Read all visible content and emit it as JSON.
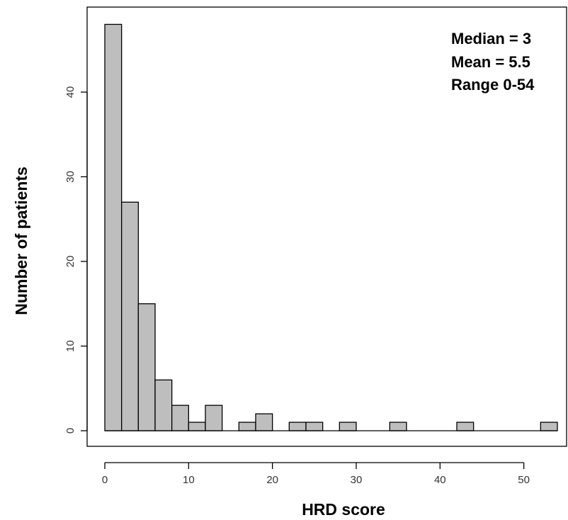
{
  "chart_data": {
    "type": "bar",
    "subtype": "histogram",
    "bin_width": 2,
    "x": [
      1,
      3,
      5,
      7,
      9,
      11,
      13,
      15,
      17,
      19,
      21,
      23,
      25,
      27,
      29,
      31,
      33,
      35,
      37,
      39,
      41,
      43,
      45,
      47,
      49,
      51,
      53
    ],
    "values": [
      48,
      27,
      15,
      6,
      3,
      1,
      3,
      0,
      1,
      2,
      0,
      1,
      1,
      0,
      1,
      0,
      0,
      1,
      0,
      0,
      0,
      1,
      0,
      0,
      0,
      0,
      1
    ],
    "xlabel": "HRD score",
    "ylabel": "Number of patients",
    "xlim": [
      0,
      54
    ],
    "ylim": [
      0,
      50
    ],
    "xticks": [
      0,
      10,
      20,
      30,
      40,
      50
    ],
    "yticks": [
      0,
      10,
      20,
      30,
      40
    ],
    "grid": false,
    "annotations": [
      "Median = 3",
      "Mean = 5.5",
      "Range 0-54"
    ],
    "colors": {
      "bar_fill": "#bebebe",
      "bar_stroke": "#000000"
    }
  }
}
